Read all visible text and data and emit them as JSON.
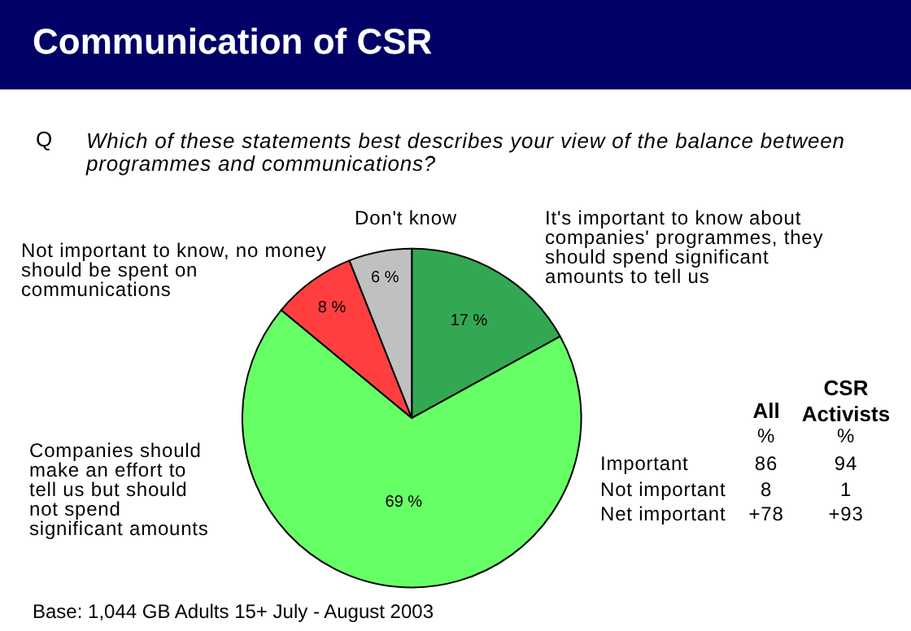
{
  "chart_data": {
    "type": "pie",
    "title": "Communication of CSR",
    "subtitle": "Which of these statements best describes your view of the balance between programmes and communications?",
    "categories": [
      "It's important to know about companies' programmes, they should spend significant amounts to tell us",
      "Companies should make an effort to tell us but should not spend significant amounts",
      "Not important to know, no money should be spent on communications",
      "Don't know"
    ],
    "values": [
      17,
      69,
      8,
      6
    ],
    "colors": [
      "#33a852",
      "#66ff66",
      "#ff3f3f",
      "#c0c0c0"
    ],
    "value_labels": [
      "17 %",
      "69 %",
      "8 %",
      "6 %"
    ],
    "annotations": [
      "Q",
      "Base: 1,044 GB Adults 15+ July - August 2003",
      "All",
      "CSR Activists",
      "%",
      "%",
      "Important",
      "86",
      "94",
      "Not important",
      "8",
      "1",
      "Net important",
      "+78",
      "+93"
    ]
  }
}
